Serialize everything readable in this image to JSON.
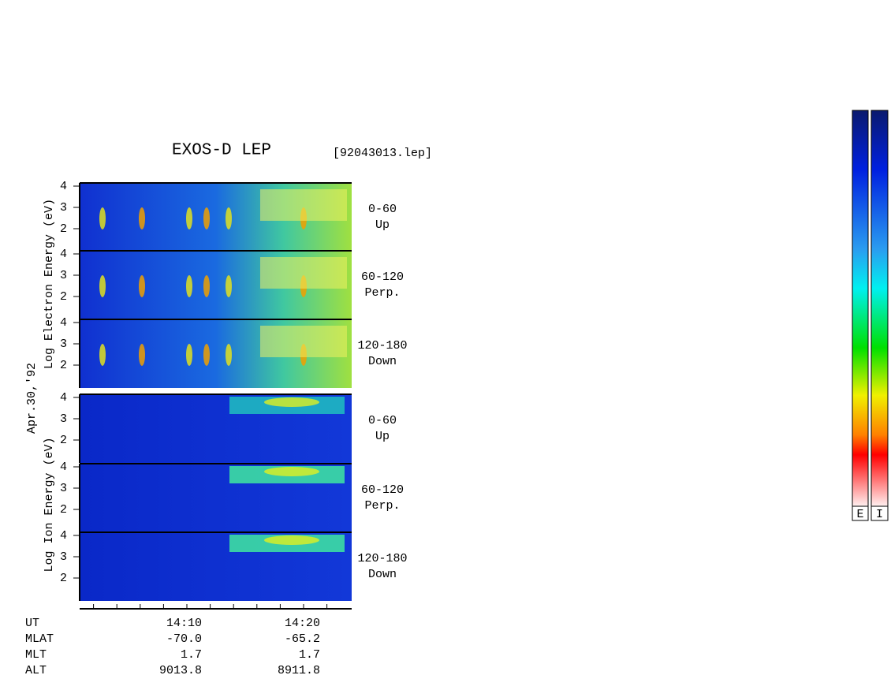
{
  "title": "EXOS-D LEP",
  "file": "[92043013.lep]",
  "date": "Apr.30,'92",
  "electron_label": "Log Electron Energy (eV)",
  "ion_label": "Log Ion Energy (eV)",
  "panels": [
    {
      "range": "0-60",
      "direction": "Up",
      "yticks": [
        4,
        3,
        2
      ]
    },
    {
      "range": "60-120",
      "direction": "Perp.",
      "yticks": [
        4,
        3,
        2
      ]
    },
    {
      "range": "120-180",
      "direction": "Down",
      "yticks": [
        4,
        3,
        2
      ]
    },
    {
      "range": "0-60",
      "direction": "Up",
      "yticks": [
        4,
        3,
        2
      ]
    },
    {
      "range": "60-120",
      "direction": "Perp.",
      "yticks": [
        4,
        3,
        2
      ]
    },
    {
      "range": "120-180",
      "direction": "Down",
      "yticks": [
        4,
        3,
        2
      ]
    }
  ],
  "footer": [
    [
      "UT",
      "14:10",
      "14:20"
    ],
    [
      "MLAT",
      "-70.0",
      "-65.2"
    ],
    [
      "MLT",
      "1.7",
      "1.7"
    ],
    [
      "ALT",
      "9013.8",
      "8911.8"
    ]
  ],
  "colorbars": [
    "E",
    "I"
  ]
}
